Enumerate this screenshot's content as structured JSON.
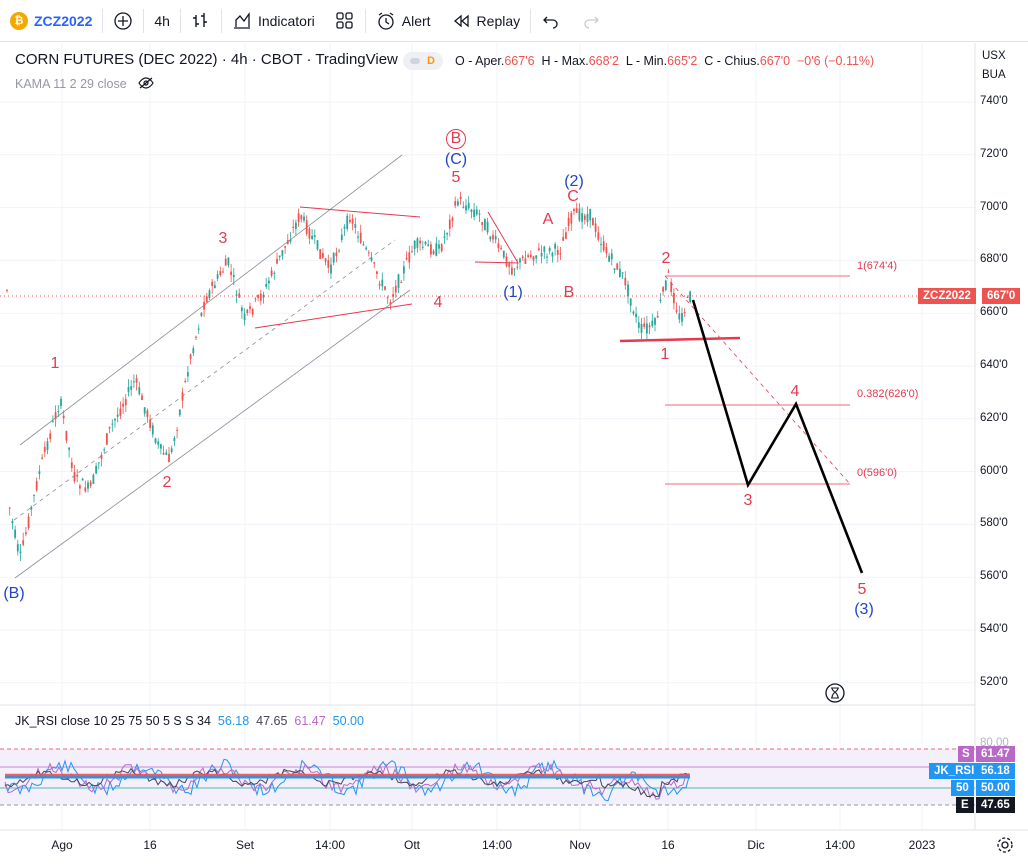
{
  "toolbar": {
    "symbol_badge": "₿",
    "symbol": "ZCZ2022",
    "interval": "4h",
    "indicators_label": "Indicatori",
    "alert_label": "Alert",
    "replay_label": "Replay"
  },
  "legend": {
    "title": "CORN FUTURES (DEC 2022) · 4h · CBOT · TradingView",
    "d_badge": "D",
    "open_label": "O - Aper.",
    "open": "667'6",
    "high_label": "H - Max.",
    "high": "668'2",
    "low_label": "L - Min.",
    "low": "665'2",
    "close_label": "C - Chius.",
    "close": "667'0",
    "change": "−0'6 (−0.11%)",
    "kama": "KAMA 11 2 29 close"
  },
  "rsi_legend": {
    "name": "JK_RSI close 10 25 75 50 5 S S 34",
    "v1": "56.18",
    "v2": "47.65",
    "v3": "61.47",
    "v4": "50.00"
  },
  "price_axis": {
    "currency": "USX",
    "unit": "BUA",
    "ticks": [
      "740'0",
      "720'0",
      "700'0",
      "680'0",
      "660'0",
      "640'0",
      "620'0",
      "600'0",
      "580'0",
      "560'0",
      "540'0",
      "520'0"
    ],
    "symbol_tag": "ZCZ2022",
    "last_price": "667'0"
  },
  "rsi_axis": {
    "top": "80.00",
    "s_tag": "S",
    "s_val": "61.47",
    "rsi_tag": "JK_RSI",
    "rsi_val": "56.18",
    "fifty_tag": "50",
    "fifty_val": "50.00",
    "e_tag": "E",
    "e_val": "47.65"
  },
  "time_axis": [
    "Ago",
    "16",
    "Set",
    "14:00",
    "Ott",
    "14:00",
    "Nov",
    "16",
    "Dic",
    "14:00",
    "2023"
  ],
  "fib_labels": {
    "f1": "1(674'4)",
    "f2": "0.382(626'0)",
    "f3": "0(596'0)"
  },
  "waves": {
    "B_circle": "B",
    "C_paren": "(C)",
    "five_top": "5",
    "two_paren": "(2)",
    "C_small": "C",
    "A": "A",
    "B": "B",
    "one_paren": "(1)",
    "three": "3",
    "four": "4",
    "one_left": "1",
    "two_left": "2",
    "B_paren": "(B)",
    "two_right": "2",
    "one_right": "1",
    "four_proj": "4",
    "three_proj": "3",
    "five_proj": "5",
    "three_paren_proj": "(3)"
  },
  "colors": {
    "up": "#26a69a",
    "down": "#ef5350",
    "wave_red": "#e53950",
    "wave_blue": "#2145c8",
    "accent": "#2962ff"
  }
}
